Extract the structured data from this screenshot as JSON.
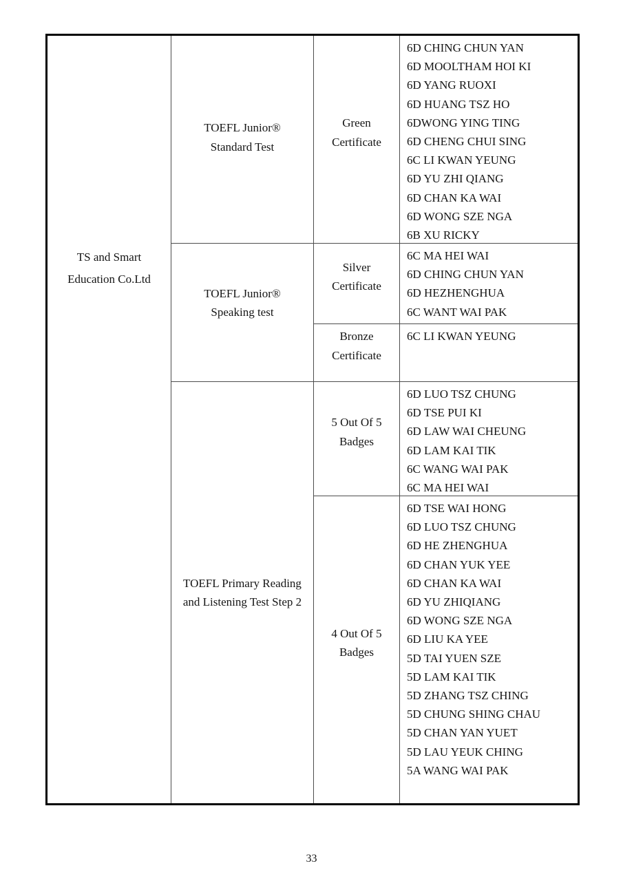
{
  "document": {
    "page_number": "33",
    "table": {
      "organization_lines": [
        "TS and Smart",
        "Education Co.Ltd"
      ],
      "sections": [
        {
          "test_lines": [
            "TOEFL Junior®",
            "Standard Test"
          ],
          "awards": [
            {
              "label_lines": [
                "Green",
                "Certificate"
              ],
              "names": [
                "6D CHING CHUN YAN",
                "6D MOOLTHAM HOI KI",
                "6D YANG RUOXI",
                "6D HUANG TSZ HO",
                "6DWONG YING TING",
                "6D CHENG CHUI SING",
                "6C LI KWAN YEUNG",
                "6D YU ZHI QIANG",
                "6D CHAN KA WAI",
                "6D WONG SZE NGA",
                "6B XU RICKY"
              ]
            }
          ]
        },
        {
          "test_lines": [
            "TOEFL Junior®",
            "Speaking test"
          ],
          "awards": [
            {
              "label_lines": [
                "Silver",
                "Certificate"
              ],
              "names": [
                "6C MA HEI WAI",
                "6D CHING CHUN YAN",
                "6D HEZHENGHUA",
                "6C WANT WAI PAK"
              ]
            },
            {
              "label_lines": [
                "Bronze",
                "Certificate"
              ],
              "names": [
                "6C LI KWAN YEUNG"
              ]
            }
          ]
        },
        {
          "test_lines": [
            "TOEFL Primary Reading",
            "and Listening Test Step 2"
          ],
          "awards": [
            {
              "label_lines": [
                "5 Out Of 5",
                "Badges"
              ],
              "names": [
                "6D LUO TSZ CHUNG",
                "6D TSE PUI KI",
                "6D LAW WAI CHEUNG",
                "6D LAM KAI TIK",
                "6C WANG WAI PAK",
                "6C MA HEI WAI"
              ]
            },
            {
              "label_lines": [
                "4 Out Of 5",
                "Badges"
              ],
              "names": [
                "6D TSE WAI HONG",
                "6D LUO TSZ CHUNG",
                "6D HE ZHENGHUA",
                "6D CHAN YUK YEE",
                "6D CHAN KA WAI",
                "6D YU ZHIQIANG",
                "6D WONG SZE NGA",
                "6D LIU KA YEE",
                "5D TAI YUEN SZE",
                "5D LAM KAI TIK",
                "5D ZHANG TSZ CHING",
                "5D CHUNG SHING CHAU",
                "5D CHAN YAN YUET",
                "5D LAU YEUK CHING",
                "5A WANG WAI PAK"
              ]
            }
          ]
        }
      ]
    }
  }
}
